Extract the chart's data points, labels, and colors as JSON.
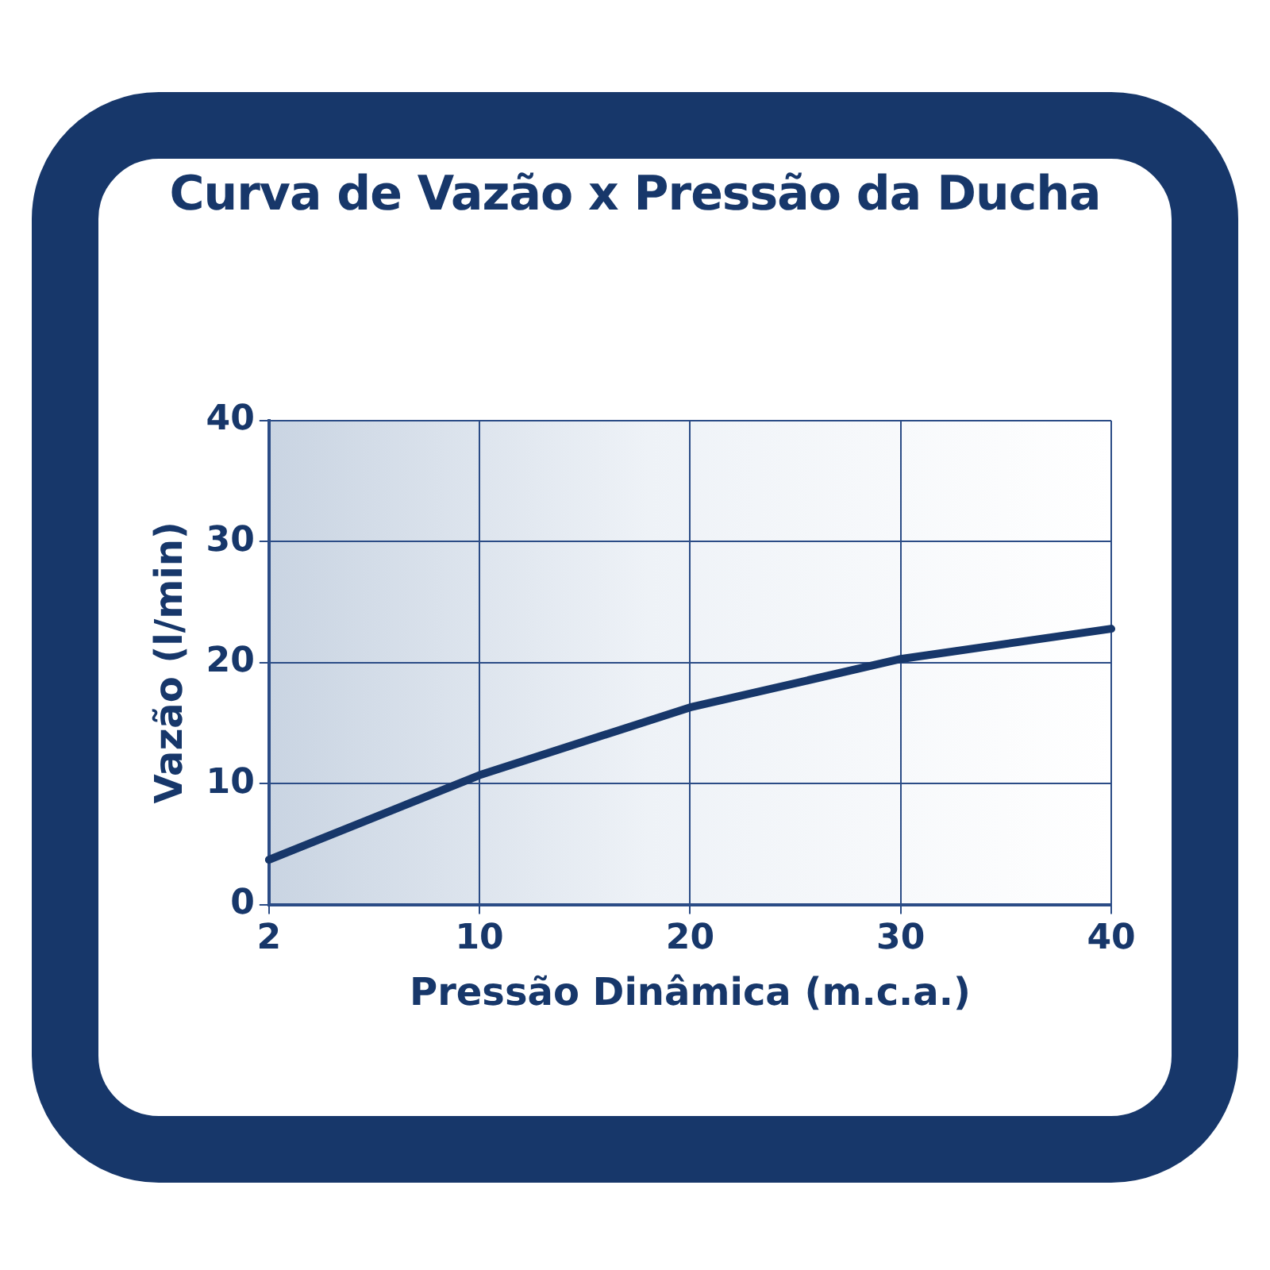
{
  "chart_data": {
    "type": "line",
    "title": "Curva de Vazão x Pressão da Ducha",
    "xlabel": "Pressão Dinâmica (m.c.a.)",
    "ylabel": "Vazão (l/min)",
    "categories": [
      "2",
      "10",
      "20",
      "30",
      "40"
    ],
    "series": [
      {
        "color": "#17376a",
        "values": [
          3.7,
          10.7,
          16.3,
          20.3,
          22.8
        ]
      }
    ],
    "ylim": [
      0,
      40
    ],
    "yticks": [
      0,
      10,
      20,
      30,
      40
    ],
    "grid": true,
    "legend": false,
    "marker": "none",
    "line_style": "solid"
  }
}
